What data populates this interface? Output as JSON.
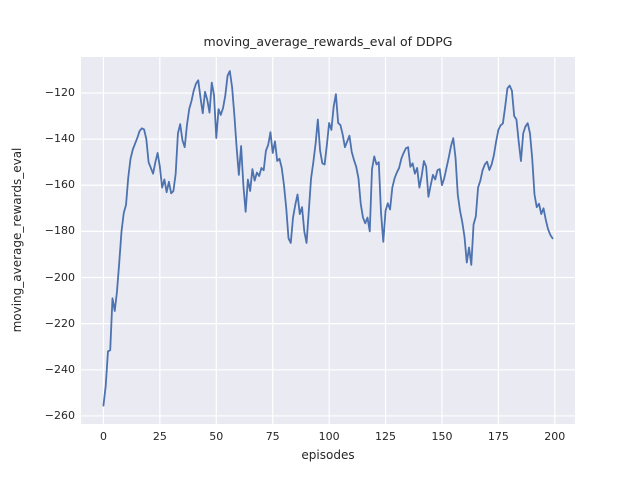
{
  "chart_data": {
    "type": "line",
    "title": "moving_average_rewards_eval of DDPG",
    "xlabel": "episodes",
    "ylabel": "moving_average_rewards_eval",
    "x_ticks": [
      0,
      25,
      50,
      75,
      100,
      125,
      150,
      175,
      200
    ],
    "y_ticks": [
      -120,
      -140,
      -160,
      -180,
      -200,
      -220,
      -240,
      -260
    ],
    "xlim": [
      -9.95,
      208.95
    ],
    "ylim": [
      -263.5,
      -104.4
    ],
    "grid": true,
    "legend_position": "none",
    "style": "seaborn-darkgrid",
    "colors": {
      "line": "#4c72b0",
      "axes_background": "#eaeaf2",
      "grid": "#ffffff",
      "text": "#262626",
      "figure_background": "#ffffff"
    },
    "series": [
      {
        "name": "moving_average_rewards_eval",
        "x_start": 0,
        "x_step": 1,
        "values": [
          -255.5,
          -247.0,
          -232.0,
          -231.5,
          -209.0,
          -214.5,
          -206.0,
          -193.5,
          -180.0,
          -172.0,
          -168.5,
          -156.5,
          -148.5,
          -144.5,
          -142.0,
          -139.5,
          -136.5,
          -135.3,
          -135.8,
          -140.0,
          -150.0,
          -152.5,
          -155.0,
          -150.0,
          -146.0,
          -152.0,
          -161.0,
          -157.5,
          -163.0,
          -158.5,
          -163.5,
          -162.5,
          -155.0,
          -137.5,
          -133.5,
          -140.5,
          -143.5,
          -134.0,
          -127.0,
          -123.5,
          -119.0,
          -116.0,
          -114.5,
          -122.0,
          -128.8,
          -119.5,
          -123.0,
          -128.5,
          -115.5,
          -121.0,
          -139.5,
          -127.0,
          -129.5,
          -126.5,
          -121.0,
          -112.5,
          -110.5,
          -117.5,
          -129.5,
          -143.5,
          -155.5,
          -143.0,
          -160.0,
          -171.5,
          -157.5,
          -162.5,
          -153.0,
          -158.0,
          -154.5,
          -156.0,
          -152.5,
          -153.5,
          -145.0,
          -142.5,
          -137.0,
          -146.0,
          -141.0,
          -149.5,
          -148.5,
          -152.5,
          -160.0,
          -170.0,
          -183.0,
          -185.0,
          -174.0,
          -168.5,
          -164.0,
          -172.5,
          -169.5,
          -180.0,
          -185.0,
          -171.0,
          -157.0,
          -150.0,
          -142.0,
          -131.5,
          -145.0,
          -150.5,
          -151.0,
          -142.5,
          -133.0,
          -136.0,
          -126.0,
          -120.5,
          -133.0,
          -133.9,
          -138.0,
          -143.5,
          -141.0,
          -138.5,
          -145.5,
          -149.0,
          -152.0,
          -157.0,
          -168.0,
          -174.0,
          -176.5,
          -174.0,
          -180.0,
          -153.0,
          -147.5,
          -151.0,
          -150.0,
          -172.0,
          -184.5,
          -171.0,
          -167.8,
          -170.5,
          -161.0,
          -157.0,
          -154.5,
          -152.5,
          -148.5,
          -146.0,
          -144.0,
          -143.5,
          -152.0,
          -150.5,
          -155.0,
          -152.5,
          -161.0,
          -156.0,
          -149.5,
          -152.0,
          -165.0,
          -160.0,
          -155.5,
          -157.5,
          -153.5,
          -153.0,
          -160.0,
          -157.0,
          -152.5,
          -148.0,
          -143.0,
          -139.6,
          -148.0,
          -164.0,
          -171.0,
          -176.0,
          -182.5,
          -193.5,
          -187.0,
          -194.5,
          -177.0,
          -173.5,
          -161.0,
          -158.0,
          -153.5,
          -151.0,
          -149.8,
          -153.4,
          -151.0,
          -147.0,
          -141.0,
          -136.0,
          -134.0,
          -133.2,
          -126.0,
          -118.0,
          -116.8,
          -119.0,
          -130.0,
          -131.5,
          -141.0,
          -149.5,
          -137.5,
          -134.5,
          -133.1,
          -137.5,
          -148.5,
          -164.0,
          -169.5,
          -168.0,
          -172.5,
          -170.0,
          -175.0,
          -179.0,
          -181.5,
          -183.0
        ]
      }
    ]
  }
}
